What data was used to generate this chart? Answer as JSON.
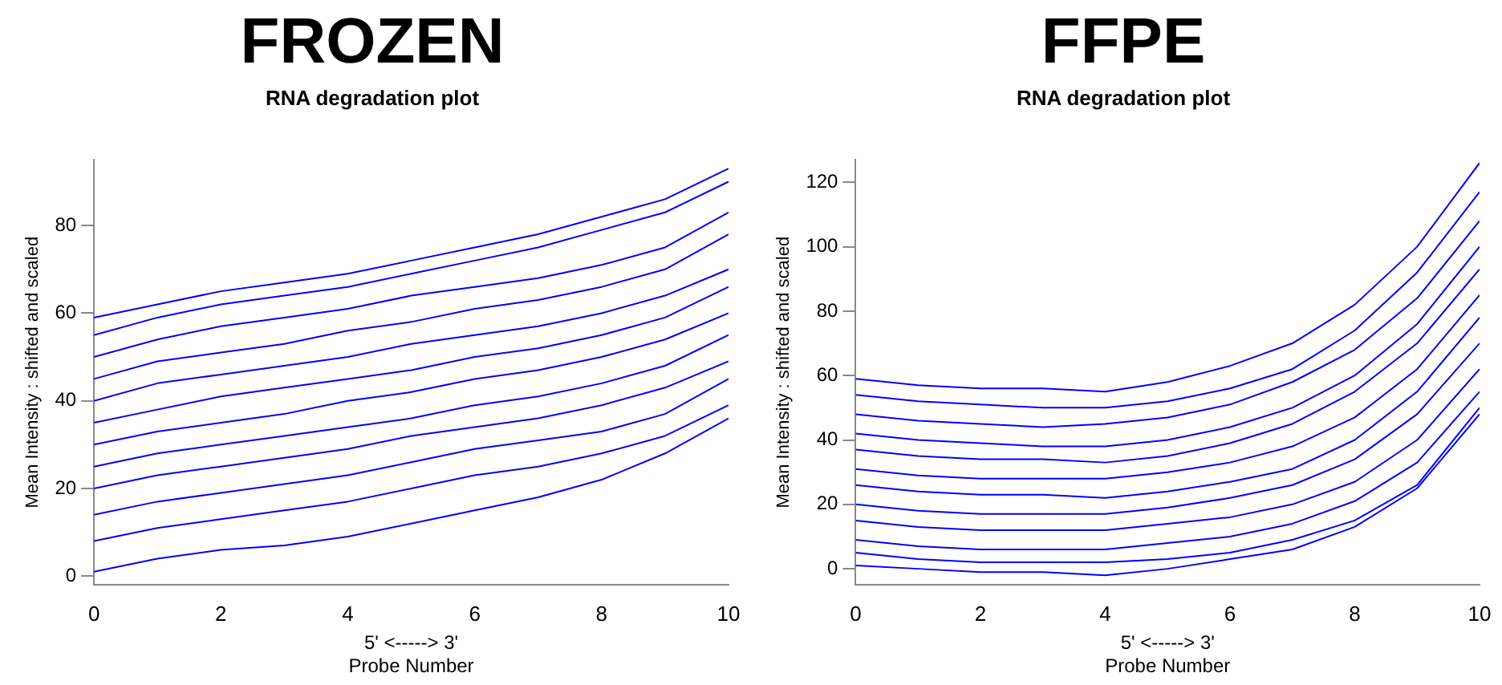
{
  "chart_data": [
    {
      "type": "line",
      "title": "FROZEN",
      "subtitle": "RNA degradation plot",
      "xlabel": "5' <-----> 3'\nProbe Number",
      "ylabel": "Mean Intensity : shifted and scaled",
      "x": [
        0,
        1,
        2,
        3,
        4,
        5,
        6,
        7,
        8,
        9,
        10
      ],
      "xlim": [
        0,
        10
      ],
      "xticks": [
        0,
        2,
        4,
        6,
        8,
        10
      ],
      "ylim": [
        -2,
        95
      ],
      "yticks": [
        0,
        20,
        40,
        60,
        80
      ],
      "grid": false,
      "series": [
        {
          "color": "#0000ff",
          "values": [
            59,
            62,
            65,
            67,
            69,
            72,
            75,
            78,
            82,
            86,
            93
          ]
        },
        {
          "color": "#0000ff",
          "values": [
            55,
            59,
            62,
            64,
            66,
            69,
            72,
            75,
            79,
            83,
            90
          ]
        },
        {
          "color": "#0000ff",
          "values": [
            50,
            54,
            57,
            59,
            61,
            64,
            66,
            68,
            71,
            75,
            83
          ]
        },
        {
          "color": "#0000ff",
          "values": [
            45,
            49,
            51,
            53,
            56,
            58,
            61,
            63,
            66,
            70,
            78
          ]
        },
        {
          "color": "#0000ff",
          "values": [
            40,
            44,
            46,
            48,
            50,
            53,
            55,
            57,
            60,
            64,
            70
          ]
        },
        {
          "color": "#0000ff",
          "values": [
            35,
            38,
            41,
            43,
            45,
            47,
            50,
            52,
            55,
            59,
            66
          ]
        },
        {
          "color": "#0000ff",
          "values": [
            30,
            33,
            35,
            37,
            40,
            42,
            45,
            47,
            50,
            54,
            60
          ]
        },
        {
          "color": "#0000ff",
          "values": [
            25,
            28,
            30,
            32,
            34,
            36,
            39,
            41,
            44,
            48,
            55
          ]
        },
        {
          "color": "#0000ff",
          "values": [
            20,
            23,
            25,
            27,
            29,
            32,
            34,
            36,
            39,
            43,
            49
          ]
        },
        {
          "color": "#0000ff",
          "values": [
            14,
            17,
            19,
            21,
            23,
            26,
            29,
            31,
            33,
            37,
            45
          ]
        },
        {
          "color": "#0000ff",
          "values": [
            8,
            11,
            13,
            15,
            17,
            20,
            23,
            25,
            28,
            32,
            39
          ]
        },
        {
          "color": "#0000ff",
          "values": [
            1,
            4,
            6,
            7,
            9,
            12,
            15,
            18,
            22,
            28,
            36
          ]
        }
      ]
    },
    {
      "type": "line",
      "title": "FFPE",
      "subtitle": "RNA degradation plot",
      "xlabel": "5' <-----> 3'\nProbe Number",
      "ylabel": "Mean Intensity : shifted and scaled",
      "x": [
        0,
        1,
        2,
        3,
        4,
        5,
        6,
        7,
        8,
        9,
        10
      ],
      "xlim": [
        0,
        10
      ],
      "xticks": [
        0,
        2,
        4,
        6,
        8,
        10
      ],
      "ylim": [
        -5,
        127
      ],
      "yticks": [
        0,
        20,
        40,
        60,
        80,
        100,
        120
      ],
      "grid": false,
      "series": [
        {
          "color": "#0000ff",
          "values": [
            59,
            57,
            56,
            56,
            55,
            58,
            63,
            70,
            82,
            100,
            126
          ]
        },
        {
          "color": "#0000ff",
          "values": [
            54,
            52,
            51,
            50,
            50,
            52,
            56,
            62,
            74,
            92,
            117
          ]
        },
        {
          "color": "#0000ff",
          "values": [
            48,
            46,
            45,
            44,
            45,
            47,
            51,
            58,
            68,
            84,
            108
          ]
        },
        {
          "color": "#0000ff",
          "values": [
            42,
            40,
            39,
            38,
            38,
            40,
            44,
            50,
            60,
            76,
            100
          ]
        },
        {
          "color": "#0000ff",
          "values": [
            37,
            35,
            34,
            34,
            33,
            35,
            39,
            45,
            55,
            70,
            93
          ]
        },
        {
          "color": "#0000ff",
          "values": [
            31,
            29,
            28,
            28,
            28,
            30,
            33,
            38,
            47,
            62,
            85
          ]
        },
        {
          "color": "#0000ff",
          "values": [
            26,
            24,
            23,
            23,
            22,
            24,
            27,
            31,
            40,
            55,
            78
          ]
        },
        {
          "color": "#0000ff",
          "values": [
            20,
            18,
            17,
            17,
            17,
            19,
            22,
            26,
            34,
            48,
            70
          ]
        },
        {
          "color": "#0000ff",
          "values": [
            15,
            13,
            12,
            12,
            12,
            14,
            16,
            20,
            27,
            40,
            62
          ]
        },
        {
          "color": "#0000ff",
          "values": [
            9,
            7,
            6,
            6,
            6,
            8,
            10,
            14,
            21,
            33,
            55
          ]
        },
        {
          "color": "#0000ff",
          "values": [
            5,
            3,
            2,
            2,
            2,
            3,
            5,
            9,
            15,
            26,
            50
          ]
        },
        {
          "color": "#0000ff",
          "values": [
            1,
            0,
            -1,
            -1,
            -2,
            0,
            3,
            6,
            13,
            25,
            48
          ]
        }
      ]
    }
  ]
}
